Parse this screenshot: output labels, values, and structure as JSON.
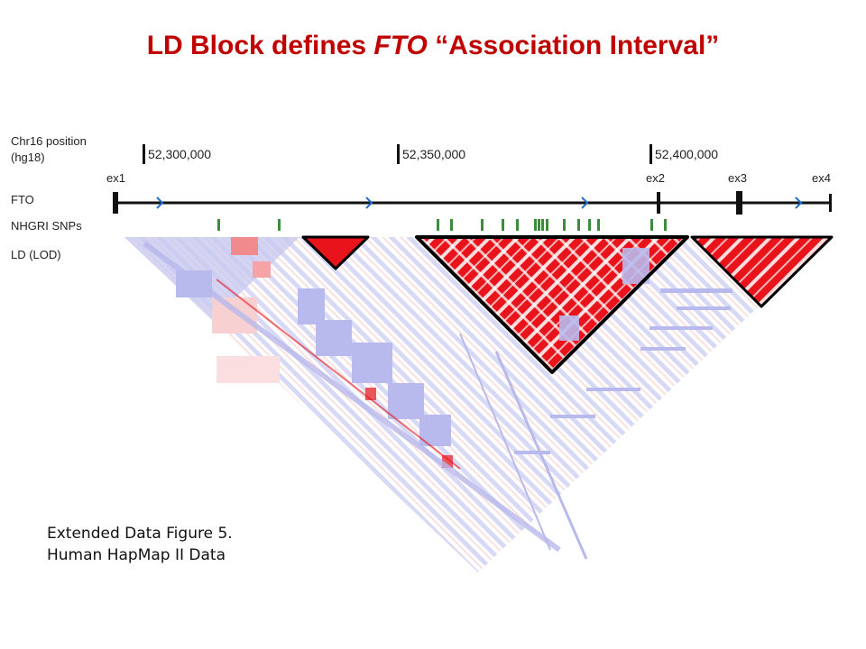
{
  "title": {
    "part1": "LD Block defines ",
    "gene": "FTO",
    "part2": " “Association Interval”"
  },
  "tracks": {
    "position_label_line1": "Chr16 position",
    "position_label_line2": "(hg18)",
    "gene_label": "FTO",
    "snps_label": "NHGRI SNPs",
    "ld_label": "LD (LOD)"
  },
  "positions": [
    "52,300,000",
    "52,350,000",
    "52,400,000"
  ],
  "exons": [
    "ex1",
    "ex2",
    "ex3",
    "ex4"
  ],
  "caption": {
    "line1": "Extended Data Figure 5.",
    "line2": "Human HapMap II Data"
  },
  "colors": {
    "title": "#c00000",
    "ld_high": "#e8131b",
    "ld_low": "#b8b9ec",
    "snp_marks": "#3d8b3d",
    "strand_arrows": "#1e6fd0"
  }
}
